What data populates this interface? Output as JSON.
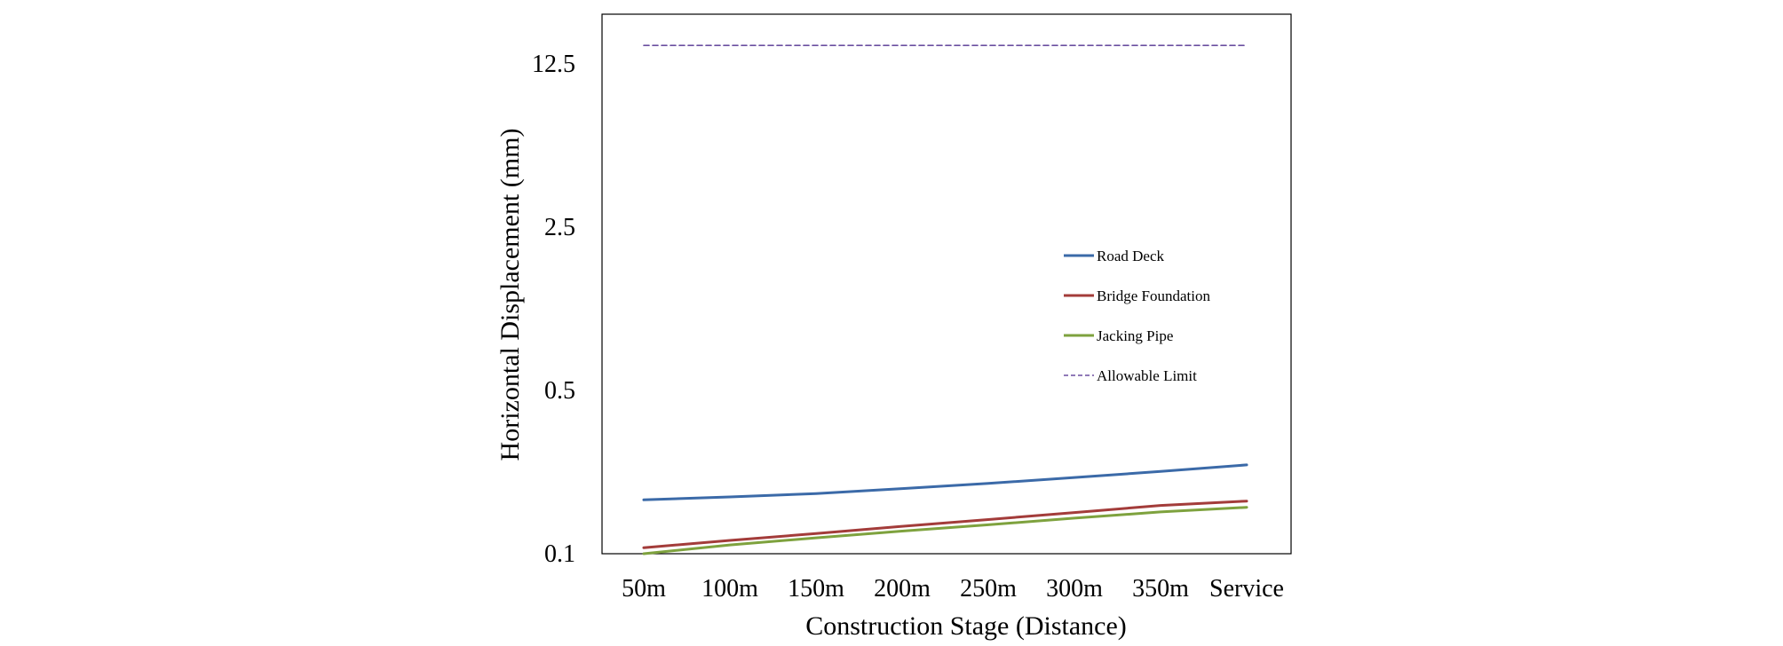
{
  "chart_data": {
    "type": "line",
    "y_scale": "log",
    "title": "",
    "xlabel": "Construction Stage (Distance)",
    "ylabel": "Horizontal Displacement  (mm)",
    "categories": [
      "50m",
      "100m",
      "150m",
      "200m",
      "250m",
      "300m",
      "350m",
      "Service"
    ],
    "yticks": [
      0.1,
      0.5,
      2.5,
      12.5
    ],
    "ytick_labels": [
      "0.1",
      "0.5",
      "2.5",
      "12.5"
    ],
    "ylim": [
      0.1,
      20
    ],
    "legend_position": "right-middle",
    "series": [
      {
        "name": "Road Deck",
        "color": "#3B6AA8",
        "style": "solid",
        "values": [
          0.17,
          0.175,
          0.181,
          0.19,
          0.2,
          0.212,
          0.225,
          0.24
        ]
      },
      {
        "name": "Bridge Foundation",
        "color": "#A33C3A",
        "style": "solid",
        "values": [
          0.106,
          0.114,
          0.122,
          0.131,
          0.14,
          0.15,
          0.161,
          0.168
        ]
      },
      {
        "name": "Jacking Pipe",
        "color": "#7EA23E",
        "style": "solid",
        "values": [
          0.1,
          0.109,
          0.117,
          0.125,
          0.133,
          0.142,
          0.151,
          0.158
        ]
      },
      {
        "name": "Allowable Limit",
        "color": "#6B4FA0",
        "style": "dashed",
        "values": [
          15,
          15,
          15,
          15,
          15,
          15,
          15,
          15
        ]
      }
    ]
  }
}
